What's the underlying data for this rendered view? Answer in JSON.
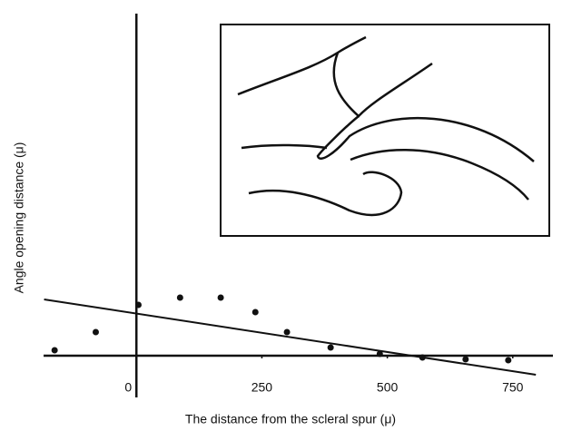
{
  "chart_data": {
    "type": "scatter",
    "x_label": "The distance from the scleral spur (μ)",
    "y_label": "Angle opening distance (μ)",
    "color": "#111111",
    "series": [
      {
        "x": [
          -163,
          -81,
          4,
          87,
          168,
          237,
          300,
          387,
          485,
          570,
          656,
          741
        ],
        "values": [
          6,
          26,
          56,
          64,
          64,
          48,
          26,
          9,
          2,
          -2,
          -4,
          -5
        ]
      }
    ],
    "trendline": {
      "x": [
        -184,
        796
      ],
      "values": [
        62,
        -21
      ]
    },
    "xlim": [
      -185,
      830
    ],
    "ylim": [
      -28,
      377
    ],
    "xticks": [
      0,
      250,
      500,
      750
    ]
  }
}
